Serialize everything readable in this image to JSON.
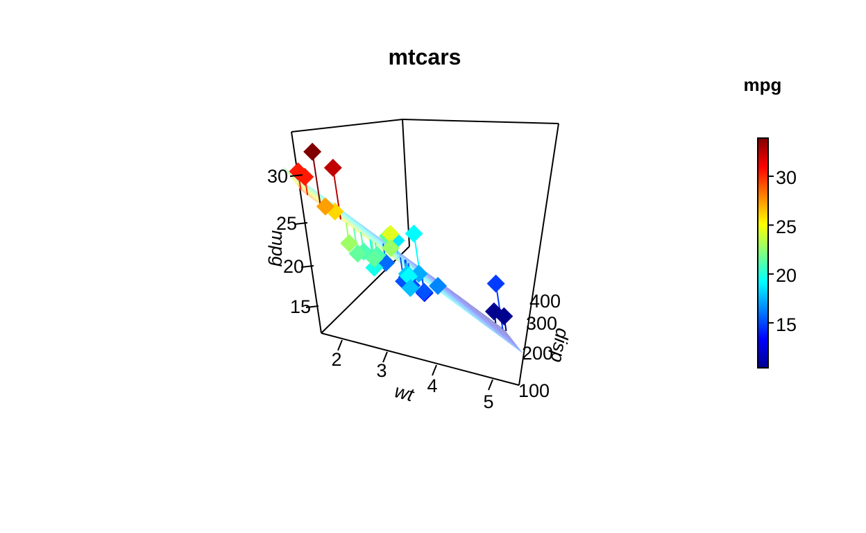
{
  "chart_data": {
    "type": "scatter",
    "title": "mtcars",
    "xlabel": "wt",
    "ylabel": "disp",
    "zlabel": "mpg",
    "xticks": [
      "2",
      "3",
      "4",
      "5"
    ],
    "yticks": [
      "100",
      "200",
      "300",
      "400"
    ],
    "zticks": [
      "15",
      "20",
      "25",
      "30"
    ],
    "xlim": [
      1.5,
      5.4
    ],
    "ylim": [
      71,
      472
    ],
    "zlim": [
      10.4,
      33.9
    ],
    "surface": "linear fit plane of mpg on wt and disp",
    "legend": {
      "title": "mpg",
      "ticks": [
        "15",
        "20",
        "25",
        "30"
      ],
      "range": [
        10.4,
        33.9
      ],
      "placement": "right",
      "palette": [
        "#00008f",
        "#0000ff",
        "#0080ff",
        "#00ffff",
        "#80ff80",
        "#ffff00",
        "#ff8000",
        "#ff0000",
        "#800000"
      ]
    },
    "points": [
      {
        "wt": 2.62,
        "disp": 160,
        "mpg": 21.0
      },
      {
        "wt": 2.875,
        "disp": 160,
        "mpg": 21.0
      },
      {
        "wt": 2.32,
        "disp": 108,
        "mpg": 22.8
      },
      {
        "wt": 3.215,
        "disp": 258,
        "mpg": 21.4
      },
      {
        "wt": 3.44,
        "disp": 360,
        "mpg": 18.7
      },
      {
        "wt": 3.46,
        "disp": 225,
        "mpg": 18.1
      },
      {
        "wt": 3.57,
        "disp": 360,
        "mpg": 14.3
      },
      {
        "wt": 3.19,
        "disp": 146.7,
        "mpg": 24.4
      },
      {
        "wt": 3.15,
        "disp": 140.8,
        "mpg": 22.8
      },
      {
        "wt": 3.44,
        "disp": 167.6,
        "mpg": 19.2
      },
      {
        "wt": 3.44,
        "disp": 167.6,
        "mpg": 17.8
      },
      {
        "wt": 4.07,
        "disp": 275.8,
        "mpg": 16.4
      },
      {
        "wt": 3.73,
        "disp": 275.8,
        "mpg": 17.3
      },
      {
        "wt": 3.78,
        "disp": 275.8,
        "mpg": 15.2
      },
      {
        "wt": 5.25,
        "disp": 472,
        "mpg": 10.4
      },
      {
        "wt": 5.424,
        "disp": 460,
        "mpg": 10.4
      },
      {
        "wt": 5.345,
        "disp": 440,
        "mpg": 14.7
      },
      {
        "wt": 2.2,
        "disp": 78.7,
        "mpg": 32.4
      },
      {
        "wt": 1.615,
        "disp": 75.7,
        "mpg": 30.4
      },
      {
        "wt": 1.835,
        "disp": 71.1,
        "mpg": 33.9
      },
      {
        "wt": 2.465,
        "disp": 120.1,
        "mpg": 21.5
      },
      {
        "wt": 3.52,
        "disp": 318,
        "mpg": 15.5
      },
      {
        "wt": 3.435,
        "disp": 304,
        "mpg": 15.2
      },
      {
        "wt": 3.84,
        "disp": 350,
        "mpg": 13.3
      },
      {
        "wt": 3.845,
        "disp": 400,
        "mpg": 19.2
      },
      {
        "wt": 1.935,
        "disp": 79,
        "mpg": 27.3
      },
      {
        "wt": 2.14,
        "disp": 120.3,
        "mpg": 26.0
      },
      {
        "wt": 1.513,
        "disp": 95.1,
        "mpg": 30.4
      },
      {
        "wt": 3.17,
        "disp": 351,
        "mpg": 15.8
      },
      {
        "wt": 2.77,
        "disp": 145,
        "mpg": 19.7
      },
      {
        "wt": 3.57,
        "disp": 301,
        "mpg": 15.0
      },
      {
        "wt": 2.78,
        "disp": 121,
        "mpg": 21.4
      }
    ]
  }
}
